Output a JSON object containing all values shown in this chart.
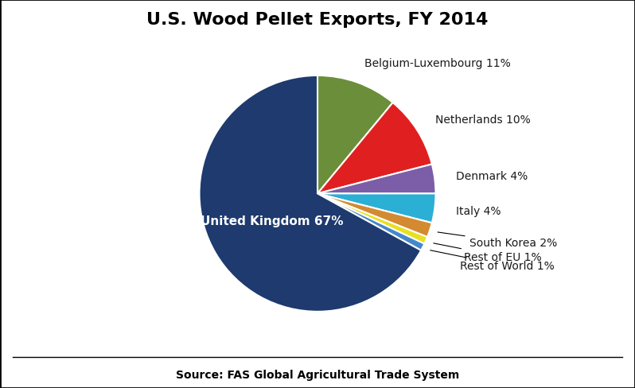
{
  "title": "U.S. Wood Pellet Exports, FY 2014",
  "source": "Source: FAS Global Agricultural Trade System",
  "labels": [
    "Belgium-Luxembourg 11%",
    "Netherlands 10%",
    "Denmark 4%",
    "Italy 4%",
    "South Korea 2%",
    "Rest of EU 1%",
    "Rest of World 1%",
    "United Kingdom 67%"
  ],
  "values": [
    11,
    10,
    4,
    4,
    2,
    1,
    1,
    67
  ],
  "colors": [
    "#6b8e3a",
    "#e02020",
    "#7b5ea7",
    "#2bafd4",
    "#d48a30",
    "#e8e020",
    "#4488cc",
    "#1e3a6e"
  ],
  "uk_label": "United Kingdom 67%",
  "uk_label_color": "#ffffff",
  "startangle": 90,
  "figsize": [
    7.98,
    4.89
  ],
  "dpi": 100,
  "bg_color": "#ffffff",
  "border_color": "#000000"
}
